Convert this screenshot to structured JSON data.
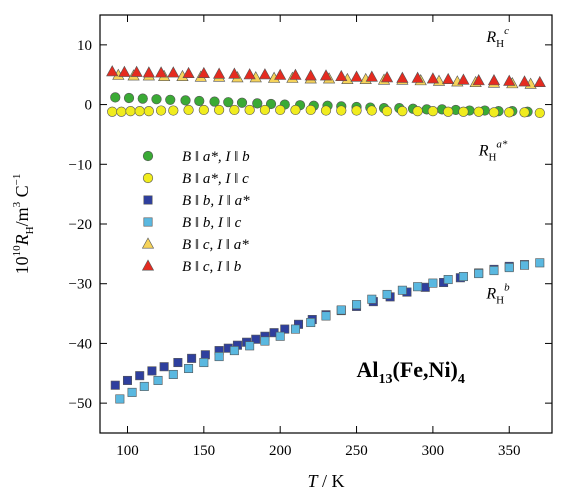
{
  "chart_data": {
    "type": "scatter",
    "xlabel": {
      "symbol": "T",
      "unit": " / K"
    },
    "ylabel": {
      "prefix": "10",
      "prefix_sup": "10",
      "symbol": "R",
      "symbol_sub": "H",
      "unit_a": "/m",
      "unit_sup": "3",
      "unit_b": " C",
      "unit_sup2": "−1"
    },
    "xlim": [
      82,
      378
    ],
    "ylim": [
      -55,
      15
    ],
    "xticks": [
      100,
      150,
      200,
      250,
      300,
      350
    ],
    "yticks": [
      10,
      0,
      -10,
      -20,
      -30,
      -40,
      -50
    ],
    "ytick_labels": [
      "10",
      "0",
      "−10",
      "−20",
      "−30",
      "−40",
      "−50"
    ],
    "legend_position": "left-middle",
    "annotations": [
      {
        "id": "rhc",
        "base": "R",
        "sub": "H",
        "sup": "c",
        "x": 335,
        "y": 10.5
      },
      {
        "id": "rha",
        "base": "R",
        "sub": "H",
        "sup": "a*",
        "x": 330,
        "y": -8.5
      },
      {
        "id": "rhb",
        "base": "R",
        "sub": "H",
        "sup": "b",
        "x": 335,
        "y": -32.5
      }
    ],
    "compound_label": {
      "parts": [
        "Al",
        "13",
        "(Fe,Ni)",
        "4"
      ],
      "x": 250,
      "y": -45.6
    },
    "series": [
      {
        "name": "B ∥ a*,  I ∥ b",
        "legend_label": "B ǁ a*,  I ǁ b",
        "marker": "circle",
        "color": "#3aaa35",
        "x": [
          92,
          101,
          110,
          119,
          128,
          138,
          147,
          157,
          166,
          175,
          185,
          194,
          203,
          213,
          222,
          231,
          240,
          250,
          259,
          268,
          278,
          287,
          296,
          306,
          315,
          324,
          334,
          343,
          352,
          362
        ],
        "y": [
          1.2,
          1.1,
          1.0,
          0.9,
          0.8,
          0.7,
          0.6,
          0.5,
          0.4,
          0.3,
          0.2,
          0.1,
          0.0,
          -0.1,
          -0.2,
          -0.2,
          -0.3,
          -0.4,
          -0.5,
          -0.6,
          -0.6,
          -0.7,
          -0.8,
          -0.8,
          -0.9,
          -1.0,
          -1.0,
          -1.1,
          -1.1,
          -1.2
        ]
      },
      {
        "name": "B ∥ a*,  I ∥ c",
        "legend_label": "B ǁ a*,  I ǁ c",
        "marker": "circle",
        "color": "#f0ec1e",
        "x": [
          90,
          96,
          102,
          108,
          114,
          122,
          130,
          140,
          150,
          160,
          170,
          180,
          190,
          200,
          210,
          220,
          230,
          240,
          250,
          260,
          270,
          280,
          290,
          300,
          310,
          320,
          330,
          340,
          350,
          360,
          370
        ],
        "y": [
          -1.2,
          -1.2,
          -1.1,
          -1.1,
          -1.1,
          -1.0,
          -1.0,
          -0.9,
          -0.9,
          -0.9,
          -0.9,
          -0.9,
          -0.9,
          -0.9,
          -0.9,
          -0.9,
          -1.0,
          -1.0,
          -1.0,
          -1.0,
          -1.1,
          -1.1,
          -1.1,
          -1.1,
          -1.2,
          -1.2,
          -1.2,
          -1.3,
          -1.3,
          -1.3,
          -1.4
        ]
      },
      {
        "name": "B ∥ b,  I ∥ a*",
        "legend_label": "B ǁ b,   I ǁ a*",
        "marker": "square",
        "color": "#2e3f9e",
        "x": [
          92,
          100,
          108,
          116,
          124,
          133,
          142,
          151,
          160,
          166,
          172,
          178,
          184,
          190,
          196,
          203,
          212,
          221,
          230,
          240,
          250,
          261,
          272,
          283,
          295,
          307,
          318,
          330,
          340,
          350,
          360
        ],
        "y": [
          -47.0,
          -46.2,
          -45.4,
          -44.6,
          -43.9,
          -43.2,
          -42.5,
          -41.9,
          -41.2,
          -40.8,
          -40.3,
          -39.8,
          -39.3,
          -38.8,
          -38.2,
          -37.6,
          -36.8,
          -36.0,
          -35.2,
          -34.5,
          -33.8,
          -33.0,
          -32.2,
          -31.4,
          -30.6,
          -29.8,
          -29.0,
          -28.2,
          -27.6,
          -27.1,
          -26.8
        ]
      },
      {
        "name": "B ∥ b,  I ∥ c",
        "legend_label": "B ǁ b,    I ǁ c",
        "marker": "square",
        "color": "#5ab8e0",
        "x": [
          95,
          103,
          111,
          120,
          130,
          140,
          150,
          160,
          170,
          180,
          190,
          200,
          210,
          220,
          230,
          240,
          250,
          260,
          270,
          280,
          290,
          300,
          310,
          320,
          330,
          340,
          350,
          360,
          370
        ],
        "y": [
          -49.3,
          -48.2,
          -47.2,
          -46.2,
          -45.2,
          -44.2,
          -43.2,
          -42.2,
          -41.2,
          -40.4,
          -39.6,
          -38.8,
          -37.6,
          -36.5,
          -35.4,
          -34.4,
          -33.5,
          -32.6,
          -31.8,
          -31.1,
          -30.5,
          -29.9,
          -29.3,
          -28.8,
          -28.3,
          -27.8,
          -27.3,
          -26.9,
          -26.5
        ]
      },
      {
        "name": "B ∥ c,  I ∥ a*",
        "legend_label": "B ǁ c,    I ǁ a*",
        "marker": "triangle",
        "color": "#f6d35a",
        "x": [
          94,
          104,
          114,
          124,
          136,
          148,
          160,
          172,
          184,
          196,
          208,
          220,
          232,
          244,
          256,
          268,
          280,
          292,
          304,
          316,
          328,
          340,
          352,
          364
        ],
        "y": [
          4.9,
          4.8,
          4.8,
          4.7,
          4.7,
          4.6,
          4.6,
          4.5,
          4.5,
          4.4,
          4.4,
          4.3,
          4.3,
          4.2,
          4.2,
          4.1,
          4.1,
          4.0,
          3.9,
          3.8,
          3.7,
          3.6,
          3.5,
          3.4
        ]
      },
      {
        "name": "B ∥ c,  I ∥ b",
        "legend_label": "B ǁ c,    I ǁ b",
        "marker": "triangle",
        "color": "#e52b20",
        "x": [
          90,
          98,
          106,
          114,
          122,
          130,
          140,
          150,
          160,
          170,
          180,
          190,
          200,
          210,
          220,
          230,
          240,
          250,
          260,
          270,
          280,
          290,
          300,
          310,
          320,
          330,
          340,
          350,
          360,
          370
        ],
        "y": [
          5.5,
          5.4,
          5.4,
          5.3,
          5.3,
          5.3,
          5.2,
          5.2,
          5.1,
          5.1,
          5.0,
          5.0,
          4.9,
          4.9,
          4.8,
          4.8,
          4.7,
          4.6,
          4.6,
          4.5,
          4.4,
          4.4,
          4.3,
          4.2,
          4.1,
          4.0,
          4.0,
          3.9,
          3.8,
          3.7
        ]
      }
    ]
  }
}
